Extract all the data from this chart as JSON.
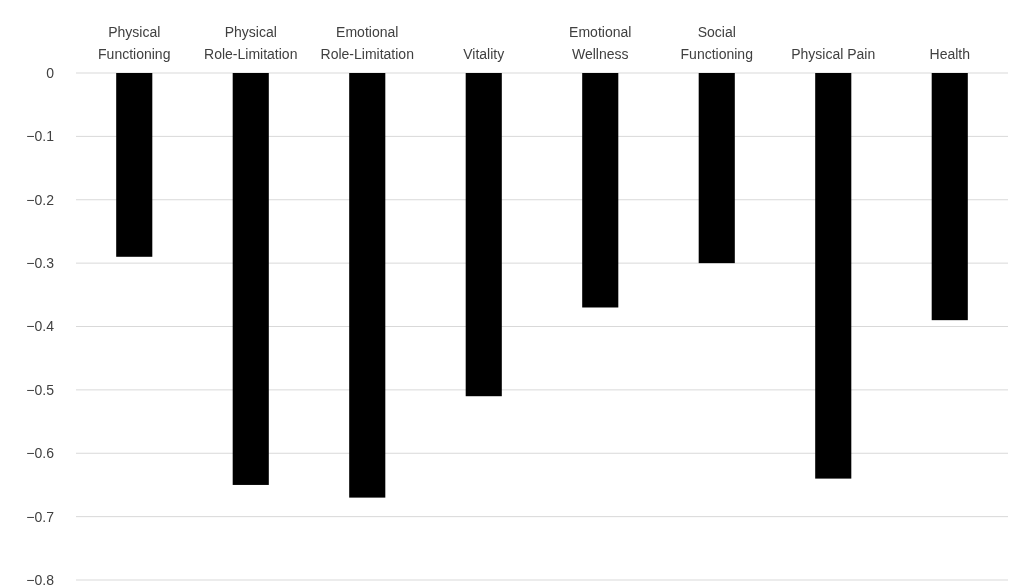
{
  "chart_data": {
    "type": "bar",
    "categories": [
      "Physical Functioning",
      "Physical Role-Limitation",
      "Emotional Role-Limitation",
      "Vitality",
      "Emotional Wellness",
      "Social Functioning",
      "Physical Pain",
      "Health"
    ],
    "values": [
      -0.29,
      -0.65,
      -0.67,
      -0.51,
      -0.37,
      -0.3,
      -0.64,
      -0.39
    ],
    "color": "#000000",
    "ylim": [
      -0.8,
      0
    ],
    "yticks": [
      {
        "value": 0,
        "label": "0"
      },
      {
        "value": -0.1,
        "label": "−0.1"
      },
      {
        "value": -0.2,
        "label": "−0.2"
      },
      {
        "value": -0.3,
        "label": "−0.3"
      },
      {
        "value": -0.4,
        "label": "−0.4"
      },
      {
        "value": -0.5,
        "label": "−0.5"
      },
      {
        "value": -0.6,
        "label": "−0.6"
      },
      {
        "value": -0.7,
        "label": "−0.7"
      },
      {
        "value": -0.8,
        "label": "−0.8"
      }
    ],
    "grid": "y"
  }
}
